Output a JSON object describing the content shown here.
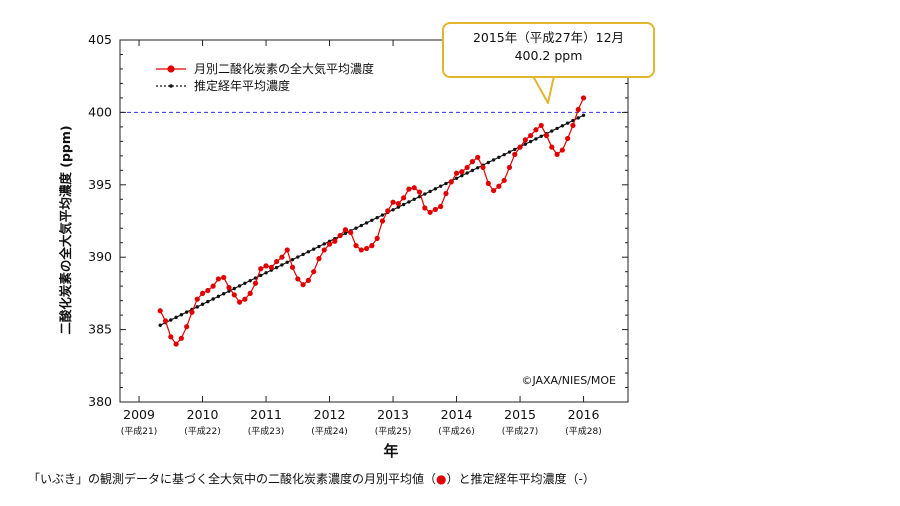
{
  "chart_data": {
    "type": "line",
    "ylabel": "二酸化炭素の全大気平均濃度 (ppm)",
    "xlabel": "年",
    "ylim": [
      380,
      405
    ],
    "xlim": [
      2008.7,
      2016.7
    ],
    "y_ticks": [
      380,
      385,
      390,
      395,
      400,
      405
    ],
    "x_ticks": [
      {
        "year": 2009,
        "label": "2009",
        "sub": "(平成21)"
      },
      {
        "year": 2010,
        "label": "2010",
        "sub": "(平成22)"
      },
      {
        "year": 2011,
        "label": "2011",
        "sub": "(平成23)"
      },
      {
        "year": 2012,
        "label": "2012",
        "sub": "(平成24)"
      },
      {
        "year": 2013,
        "label": "2013",
        "sub": "(平成25)"
      },
      {
        "year": 2014,
        "label": "2014",
        "sub": "(平成26)"
      },
      {
        "year": 2015,
        "label": "2015",
        "sub": "(平成27)"
      },
      {
        "year": 2016,
        "label": "2016",
        "sub": "(平成28)"
      }
    ],
    "reference_line": {
      "y": 400,
      "color": "#3333dd",
      "style": "dashed"
    },
    "legend_placement": "top-left",
    "series": [
      {
        "name": "月別二酸化炭素の全大気平均濃度",
        "color": "#e00000",
        "marker": "circle",
        "start": "2009-05",
        "values": [
          386.3,
          385.6,
          384.5,
          384.0,
          384.4,
          385.2,
          386.2,
          387.1,
          387.5,
          387.7,
          388.0,
          388.5,
          388.6,
          387.9,
          387.4,
          386.9,
          387.1,
          387.5,
          388.2,
          389.2,
          389.4,
          389.3,
          389.7,
          390.0,
          390.5,
          389.3,
          388.5,
          388.1,
          388.4,
          389.0,
          389.9,
          390.5,
          390.9,
          391.1,
          391.5,
          391.9,
          391.7,
          390.8,
          390.5,
          390.6,
          390.8,
          391.3,
          392.5,
          393.2,
          393.8,
          393.7,
          394.1,
          394.7,
          394.8,
          394.5,
          393.4,
          393.1,
          393.3,
          393.5,
          394.4,
          395.2,
          395.8,
          395.9,
          396.2,
          396.6,
          396.9,
          396.2,
          395.1,
          394.6,
          394.9,
          395.3,
          396.2,
          397.1,
          397.6,
          398.1,
          398.4,
          398.8,
          399.1,
          398.4,
          397.6,
          397.1,
          397.4,
          398.2,
          399.1,
          400.2,
          401.0
        ]
      },
      {
        "name": "推定経年平均濃度",
        "color": "#111111",
        "marker": "small-dot",
        "start": "2009-05",
        "linear": {
          "from": 385.3,
          "to": 399.8
        }
      }
    ],
    "annotation": {
      "line1": "2015年（平成27年）12月",
      "line2": "400.2 ppm"
    },
    "credit": "©JAXA/NIES/MOE"
  },
  "caption": {
    "pre": "「いぶき」の観測データに基づく全大気中の二酸化炭素濃度の月別平均値（",
    "dot": "●",
    "post": "）と推定経年平均濃度（-）"
  }
}
